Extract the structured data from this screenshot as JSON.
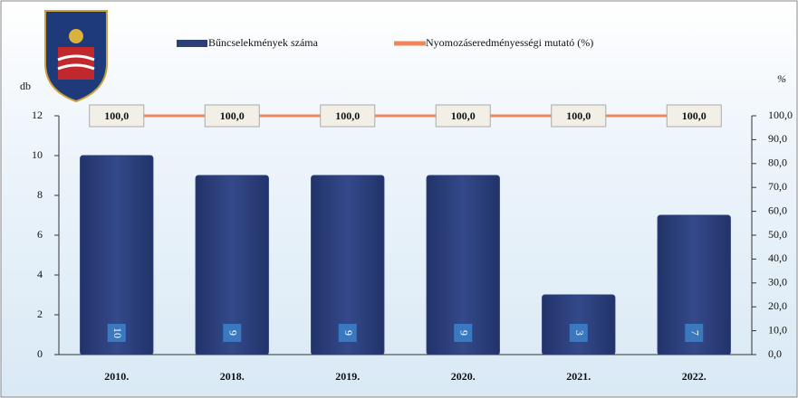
{
  "chart_data": {
    "type": "bar",
    "categories": [
      "2010.",
      "2018.",
      "2019.",
      "2020.",
      "2021.",
      "2022."
    ],
    "series": [
      {
        "name": "Bűncselekmények száma",
        "type": "bar",
        "color": "#2c3f78",
        "values": [
          10,
          9,
          9,
          9,
          3,
          7
        ]
      },
      {
        "name": "Nyomozáseredményességi mutató (%)",
        "type": "line",
        "axis": "y2",
        "color": "#f0875a",
        "values": [
          100,
          100,
          100,
          100,
          100,
          100
        ],
        "value_labels": [
          "100,0",
          "100,0",
          "100,0",
          "100,0",
          "100,0",
          "100,0"
        ]
      }
    ],
    "ylabel": "db",
    "y2label": "%",
    "ylim": [
      0,
      12
    ],
    "yticks": [
      0,
      2,
      4,
      6,
      8,
      10,
      12
    ],
    "y2lim": [
      0,
      100
    ],
    "y2ticks": [
      {
        "value": 0,
        "label": "0,0"
      },
      {
        "value": 10,
        "label": "10,0"
      },
      {
        "value": 20,
        "label": "20,0"
      },
      {
        "value": 30,
        "label": "30,0"
      },
      {
        "value": 40,
        "label": "40,0"
      },
      {
        "value": 50,
        "label": "50,0"
      },
      {
        "value": 60,
        "label": "60,0"
      },
      {
        "value": 70,
        "label": "70,0"
      },
      {
        "value": 80,
        "label": "80,0"
      },
      {
        "value": 90,
        "label": "90,0"
      },
      {
        "value": 100,
        "label": "100,0"
      }
    ],
    "legend": "top"
  }
}
